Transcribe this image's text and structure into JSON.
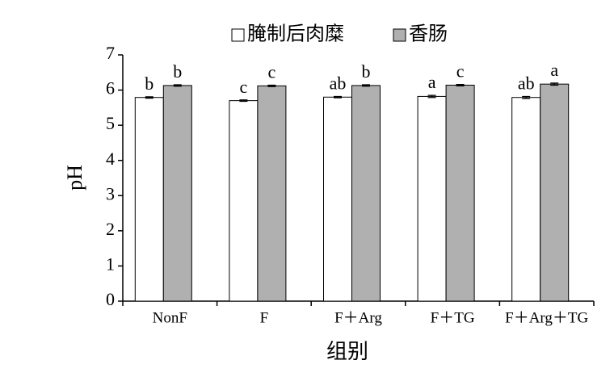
{
  "chart_data": {
    "type": "bar",
    "categories": [
      "NonF",
      "F",
      "F＋Arg",
      "F＋TG",
      "F＋Arg＋TG"
    ],
    "series": [
      {
        "name": "腌制后肉糜",
        "color": "#ffffff",
        "values": [
          5.79,
          5.7,
          5.8,
          5.82,
          5.79
        ],
        "errors": [
          0.02,
          0.02,
          0.02,
          0.03,
          0.03
        ],
        "letters": [
          "b",
          "c",
          "ab",
          "a",
          "ab"
        ]
      },
      {
        "name": "香肠",
        "color": "#b0b0b0",
        "values": [
          6.13,
          6.12,
          6.13,
          6.14,
          6.17
        ],
        "errors": [
          0.02,
          0.02,
          0.02,
          0.02,
          0.03
        ],
        "letters": [
          "b",
          "c",
          "b",
          "c",
          "a"
        ]
      }
    ],
    "xlabel": "组别",
    "ylabel": "pH",
    "ylim": [
      0,
      7
    ],
    "yticks": [
      0,
      1,
      2,
      3,
      4,
      5,
      6,
      7
    ]
  }
}
